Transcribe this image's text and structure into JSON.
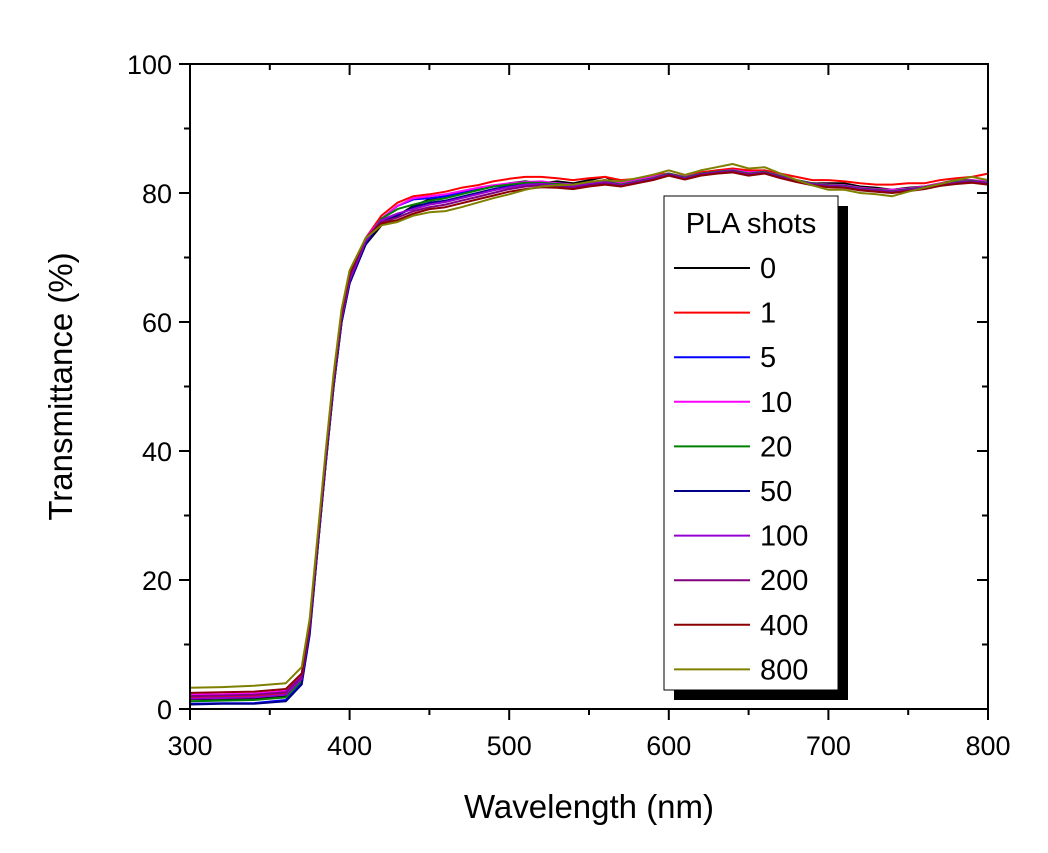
{
  "chart_data": {
    "type": "line",
    "title": "",
    "xlabel": "Wavelength (nm)",
    "ylabel": "Transmittance (%)",
    "xlim": [
      300,
      800
    ],
    "ylim": [
      0,
      100
    ],
    "xticks": [
      300,
      400,
      500,
      600,
      700,
      800
    ],
    "yticks": [
      0,
      20,
      40,
      60,
      80,
      100
    ],
    "grid": false,
    "legend": {
      "title": "PLA shots",
      "placement": "right"
    },
    "x": [
      300,
      320,
      340,
      360,
      370,
      375,
      380,
      385,
      390,
      395,
      400,
      410,
      420,
      430,
      440,
      450,
      460,
      470,
      480,
      490,
      500,
      510,
      520,
      530,
      540,
      550,
      560,
      570,
      580,
      590,
      600,
      610,
      620,
      630,
      640,
      650,
      660,
      670,
      680,
      690,
      700,
      710,
      720,
      730,
      740,
      750,
      760,
      770,
      780,
      790,
      800
    ],
    "series": [
      {
        "name": "0",
        "color": "#000000",
        "values": [
          1.5,
          1.6,
          1.6,
          2.0,
          4.5,
          12,
          25,
          38,
          50,
          60,
          66,
          72,
          75,
          76.5,
          78,
          79,
          79.5,
          80,
          80.5,
          81,
          81.5,
          81.8,
          81.5,
          81.8,
          81.5,
          82,
          82.5,
          81.5,
          82,
          82.5,
          83,
          82.5,
          83,
          83.5,
          83.5,
          83,
          83.5,
          82.5,
          82,
          81.5,
          81.5,
          81.5,
          81,
          80.8,
          80.5,
          80.8,
          81,
          81.5,
          82,
          82,
          81.5
        ]
      },
      {
        "name": "1",
        "color": "#ff0000",
        "values": [
          1.8,
          1.9,
          2.0,
          2.4,
          5.0,
          13,
          26,
          39,
          51,
          61,
          67,
          73,
          76.5,
          78.5,
          79.5,
          79.8,
          80.2,
          80.8,
          81.2,
          81.8,
          82.2,
          82.5,
          82.5,
          82.3,
          82,
          82.3,
          82.5,
          82,
          82.2,
          82.8,
          83,
          82.5,
          83.2,
          83.5,
          83.8,
          83.5,
          83.5,
          83,
          82.5,
          82,
          82,
          81.8,
          81.5,
          81.3,
          81.3,
          81.5,
          81.5,
          82,
          82.3,
          82.5,
          83
        ]
      },
      {
        "name": "5",
        "color": "#0000ff",
        "values": [
          0.8,
          0.9,
          0.9,
          1.4,
          4.0,
          12,
          25,
          38,
          50,
          60,
          66,
          72.5,
          76,
          78,
          79,
          79.2,
          79.5,
          80,
          80.5,
          81,
          81.2,
          81.5,
          81.5,
          81.5,
          81.3,
          81.5,
          82,
          81.3,
          81.8,
          82.3,
          83,
          82.3,
          83,
          83.2,
          83.5,
          83,
          83.2,
          82.5,
          82,
          81.5,
          81.2,
          81.2,
          80.8,
          80.5,
          80.3,
          80.5,
          80.8,
          81.3,
          81.5,
          81.8,
          81.5
        ]
      },
      {
        "name": "10",
        "color": "#ff00ff",
        "values": [
          2.2,
          2.3,
          2.4,
          2.8,
          5.2,
          13,
          26,
          39,
          51,
          61,
          67,
          73,
          76,
          78,
          79.2,
          79.5,
          79.8,
          80.3,
          80.8,
          81.2,
          81.5,
          81.7,
          81.8,
          81.5,
          81.3,
          81.6,
          82,
          81.5,
          82,
          82.5,
          83,
          82.5,
          83,
          83.3,
          83.6,
          83.2,
          83.3,
          82.7,
          82,
          81.5,
          81.3,
          81.2,
          80.8,
          80.6,
          80.5,
          80.7,
          81,
          81.5,
          81.8,
          82,
          81.8
        ]
      },
      {
        "name": "20",
        "color": "#008000",
        "values": [
          1.2,
          1.3,
          1.4,
          1.8,
          4.4,
          12,
          25,
          38,
          50,
          60,
          66,
          72.5,
          76,
          77.5,
          78.2,
          78.8,
          79.2,
          79.8,
          80.4,
          81,
          81.3,
          81.6,
          81.6,
          81.4,
          81.2,
          81.5,
          81.8,
          81.3,
          81.8,
          82.3,
          83,
          82.4,
          83,
          83.3,
          83.5,
          83,
          83.3,
          82.6,
          82,
          81.5,
          81.2,
          81.1,
          80.7,
          80.5,
          80.3,
          80.6,
          80.9,
          81.4,
          81.7,
          81.9,
          81.6
        ]
      },
      {
        "name": "50",
        "color": "#00008b",
        "values": [
          0.7,
          0.8,
          0.8,
          1.2,
          3.8,
          11.5,
          25,
          38,
          50,
          60,
          66,
          72,
          75.5,
          76.5,
          77.8,
          78.5,
          78.8,
          79.4,
          80,
          80.6,
          81,
          81.3,
          81.4,
          81.2,
          81,
          81.4,
          81.7,
          81.2,
          81.7,
          82.2,
          82.9,
          82.3,
          82.9,
          83.2,
          83.4,
          82.9,
          83.2,
          82.5,
          81.9,
          81.4,
          81.1,
          81,
          80.6,
          80.4,
          80.2,
          80.5,
          80.8,
          81.3,
          81.6,
          81.8,
          81.5
        ]
      },
      {
        "name": "100",
        "color": "#9400d3",
        "values": [
          1.6,
          1.7,
          1.8,
          2.2,
          4.7,
          12.5,
          25.5,
          38.5,
          50.5,
          60.5,
          66.5,
          72.5,
          75.8,
          76.8,
          77.5,
          78.2,
          78.6,
          79.2,
          79.8,
          80.4,
          80.9,
          81.3,
          81.4,
          81.2,
          81,
          81.4,
          81.7,
          81.2,
          81.7,
          82.2,
          82.9,
          82.3,
          82.9,
          83.2,
          83.4,
          82.9,
          83.2,
          82.5,
          81.9,
          81.4,
          81.1,
          81,
          80.6,
          80.4,
          80.2,
          80.5,
          80.8,
          81.3,
          81.6,
          81.8,
          81.5
        ]
      },
      {
        "name": "200",
        "color": "#800080",
        "values": [
          2.0,
          2.1,
          2.2,
          2.6,
          5.0,
          13,
          26,
          39,
          51,
          61,
          67,
          73,
          75.5,
          76.2,
          77.2,
          77.8,
          78.2,
          78.8,
          79.4,
          80,
          80.6,
          81,
          81.2,
          81,
          80.8,
          81.2,
          81.5,
          81.1,
          81.6,
          82.1,
          82.8,
          82.2,
          82.8,
          83.1,
          83.3,
          82.8,
          83.1,
          82.4,
          81.8,
          81.3,
          81,
          80.9,
          80.5,
          80.3,
          80.1,
          80.4,
          80.7,
          81.2,
          81.5,
          81.7,
          81.4
        ]
      },
      {
        "name": "400",
        "color": "#8b0000",
        "values": [
          2.5,
          2.6,
          2.7,
          3.1,
          5.5,
          13.5,
          26.5,
          39.5,
          51.5,
          61.5,
          67.5,
          73,
          75.3,
          75.8,
          76.8,
          77.5,
          77.8,
          78.4,
          79,
          79.6,
          80.2,
          80.6,
          80.9,
          80.8,
          80.6,
          81,
          81.3,
          81,
          81.5,
          82,
          82.7,
          82.1,
          82.7,
          83,
          83.2,
          82.7,
          83,
          82.3,
          81.7,
          81.2,
          80.9,
          80.8,
          80.4,
          80.2,
          80,
          80.3,
          80.6,
          81.1,
          81.4,
          81.6,
          81.3
        ]
      },
      {
        "name": "800",
        "color": "#808000",
        "values": [
          3.3,
          3.4,
          3.6,
          4.0,
          6.5,
          14,
          27,
          40,
          52,
          62,
          68,
          73,
          75,
          75.5,
          76.5,
          77,
          77.2,
          77.8,
          78.5,
          79.2,
          79.8,
          80.5,
          81,
          81.2,
          81.3,
          81.7,
          82,
          81.8,
          82.3,
          82.8,
          83.5,
          82.8,
          83.5,
          84,
          84.5,
          83.8,
          84,
          83,
          82,
          81.2,
          80.5,
          80.5,
          80,
          79.8,
          79.5,
          80.2,
          80.8,
          81.4,
          82,
          82.5,
          82
        ]
      }
    ]
  }
}
